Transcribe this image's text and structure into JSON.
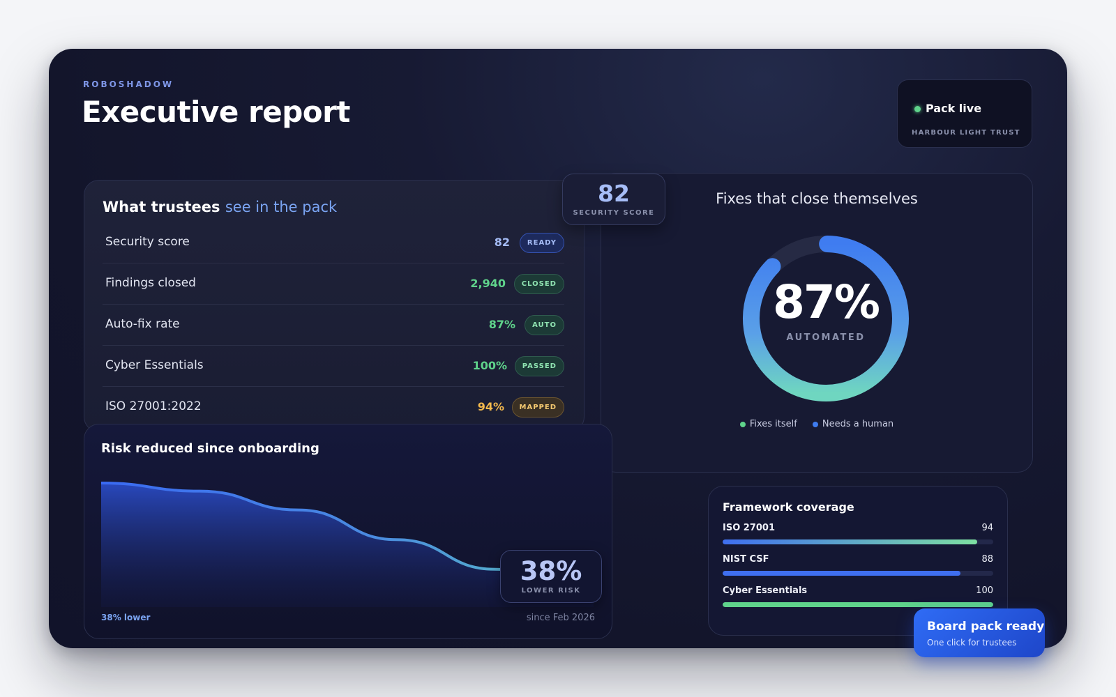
{
  "header": {
    "brand": "ROBOSHADOW",
    "title": "Executive report"
  },
  "status": {
    "title": "Pack live",
    "subtitle": "HARBOUR LIGHT TRUST",
    "dot_color": "#5fd38b"
  },
  "trustees": {
    "title": "What trustees",
    "title_accent": "see in the pack",
    "rows": [
      {
        "label": "Security score",
        "value": "82",
        "badge": "READY",
        "color": "#a6bdf7",
        "badge_bg": "#1d2a5c",
        "badge_border": "#3552b0",
        "badge_color": "#a6bdf7"
      },
      {
        "label": "Findings closed",
        "value": "2,940",
        "badge": "CLOSED",
        "color": "#5fd38b",
        "badge_bg": "#1c3a36",
        "badge_border": "#2f5a4e",
        "badge_color": "#8fe3b1"
      },
      {
        "label": "Auto-fix rate",
        "value": "87%",
        "badge": "AUTO",
        "color": "#5fd38b",
        "badge_bg": "#1c3a36",
        "badge_border": "#2f5a4e",
        "badge_color": "#8fe3b1"
      },
      {
        "label": "Cyber Essentials",
        "value": "100%",
        "badge": "PASSED",
        "color": "#5fd38b",
        "badge_bg": "#1c3a36",
        "badge_border": "#2f5a4e",
        "badge_color": "#8fe3b1"
      },
      {
        "label": "ISO 27001:2022",
        "value": "94%",
        "badge": "MAPPED",
        "color": "#f3b94d",
        "badge_bg": "#3a3024",
        "badge_border": "#6a5430",
        "badge_color": "#f3c870"
      }
    ]
  },
  "security_chip": {
    "value": "82",
    "caption": "SECURITY SCORE"
  },
  "fixes": {
    "title": "Fixes that close themselves",
    "percent_label": "87%",
    "percent": 87,
    "caption": "AUTOMATED",
    "legend": [
      {
        "label": "Fixes itself",
        "color": "#5fd38b"
      },
      {
        "label": "Needs a human",
        "color": "#3f7cf0"
      }
    ]
  },
  "risk": {
    "title": "Risk reduced since onboarding",
    "chip_value": "38%",
    "chip_caption": "LOWER RISK",
    "footer_left": "38% lower",
    "footer_right": "since Feb 2026",
    "trend": [
      100,
      97,
      90,
      79,
      68,
      62
    ]
  },
  "framework": {
    "title": "Framework coverage",
    "items": [
      {
        "name": "ISO 27001",
        "value": "94",
        "pct": 94,
        "from": "#3f6ff0",
        "to": "#7ee0a2"
      },
      {
        "name": "NIST CSF",
        "value": "88",
        "pct": 88,
        "from": "#3f6ff0",
        "to": "#3f6ff0"
      },
      {
        "name": "Cyber Essentials",
        "value": "100",
        "pct": 100,
        "from": "#5fd38b",
        "to": "#5fd38b"
      }
    ]
  },
  "cta": {
    "title": "Board pack ready",
    "subtitle": "One click for trustees"
  }
}
